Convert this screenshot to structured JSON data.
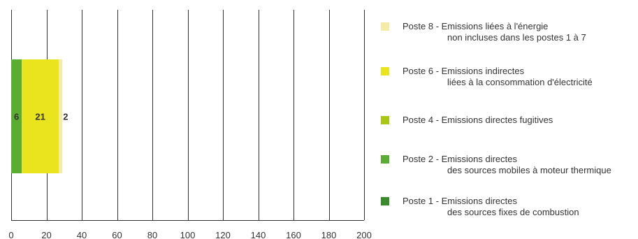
{
  "chart_data": {
    "type": "bar",
    "orientation": "horizontal",
    "stacked": true,
    "xlim": [
      0,
      200
    ],
    "x_ticks": [
      "0",
      "20",
      "40",
      "60",
      "80",
      "100",
      "120",
      "140",
      "160",
      "180",
      "200"
    ],
    "grid": "vertical",
    "legend_position": "right",
    "series": [
      {
        "name": "Poste 1 - Emissions directes des sources fixes de combustion",
        "value": 0,
        "color": "#3c8a2e"
      },
      {
        "name": "Poste 2 - Emissions directes des sources mobiles à moteur thermique",
        "value": 6,
        "label": "6",
        "color": "#5aac32"
      },
      {
        "name": "Poste 4 - Emissions directes fugitives",
        "value": 0,
        "color": "#aac813"
      },
      {
        "name": "Poste 6 - Emissions indirectes liées à la consommation d'électricité",
        "value": 21,
        "label": "21",
        "color": "#eae41f"
      },
      {
        "name": "Poste 8 - Emissions liées à l'énergie non incluses dans les postes 1 à 7",
        "value": 2,
        "label": "2",
        "color": "#f3eba6"
      }
    ]
  },
  "legend": [
    {
      "line1": "Poste 8 - Emissions liées à l'énergie",
      "line2": "non incluses dans les postes 1 à 7",
      "color": "#f3eba6"
    },
    {
      "line1": "Poste 6 - Emissions indirectes",
      "line2": "liées à la consommation d'électricité",
      "color": "#eae41f"
    },
    {
      "line1": "Poste 4 - Emissions directes fugitives",
      "line2": "",
      "color": "#aac813"
    },
    {
      "line1": "Poste 2 - Emissions directes",
      "line2": "des sources mobiles à moteur thermique",
      "color": "#5aac32"
    },
    {
      "line1": "Poste 1 - Emissions directes",
      "line2": "des sources fixes de combustion",
      "color": "#3c8a2e"
    }
  ]
}
